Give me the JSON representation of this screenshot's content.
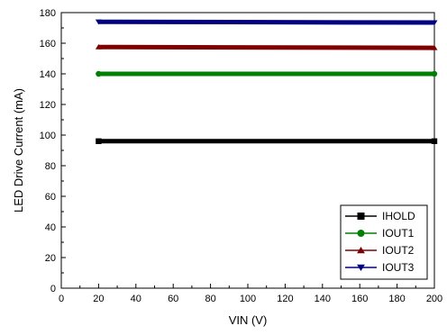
{
  "chart_data": {
    "type": "line",
    "xlabel": "VIN (V)",
    "ylabel": "LED Drive Current (mA)",
    "xlim": [
      0,
      200
    ],
    "ylim": [
      0,
      180
    ],
    "xticks": [
      0,
      20,
      40,
      60,
      80,
      100,
      120,
      140,
      160,
      180,
      200
    ],
    "yticks": [
      0,
      20,
      40,
      60,
      80,
      100,
      120,
      140,
      160,
      180
    ],
    "grid": false,
    "legend_position": "bottom-right",
    "series": [
      {
        "name": "IHOLD",
        "color": "#000000",
        "marker": "square",
        "x": [
          20,
          200
        ],
        "y": [
          96,
          96
        ]
      },
      {
        "name": "IOUT1",
        "color": "#008000",
        "marker": "circle",
        "x": [
          20,
          200
        ],
        "y": [
          140,
          140
        ]
      },
      {
        "name": "IOUT2",
        "color": "#800000",
        "marker": "triangle-up",
        "x": [
          20,
          200
        ],
        "y": [
          157.5,
          157
        ]
      },
      {
        "name": "IOUT3",
        "color": "#000080",
        "marker": "triangle-down",
        "x": [
          20,
          200
        ],
        "y": [
          174,
          173.5
        ]
      }
    ]
  }
}
